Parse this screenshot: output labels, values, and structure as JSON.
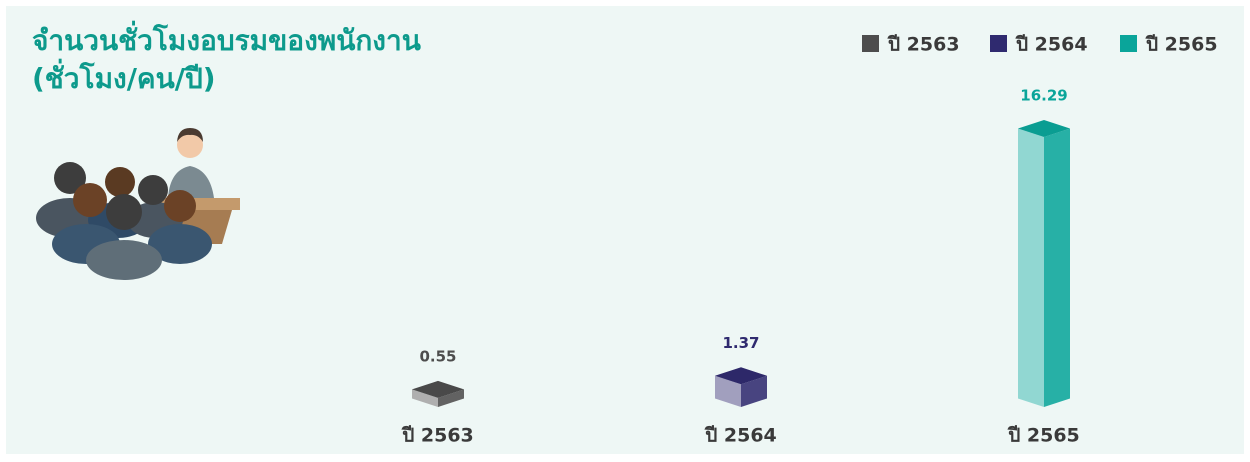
{
  "chart_data": {
    "type": "bar3d",
    "title": [
      "จำนวนชั่วโมงอบรมของพนักงาน",
      "(ชั่วโมง/คน/ปี)"
    ],
    "categories": [
      "ปี 2563",
      "ปี 2564",
      "ปี 2565"
    ],
    "values": [
      0.55,
      1.37,
      16.29
    ],
    "colors": [
      "#4d4d4d",
      "#2f2a6f",
      "#0aa59a"
    ],
    "legend": "top-right"
  }
}
